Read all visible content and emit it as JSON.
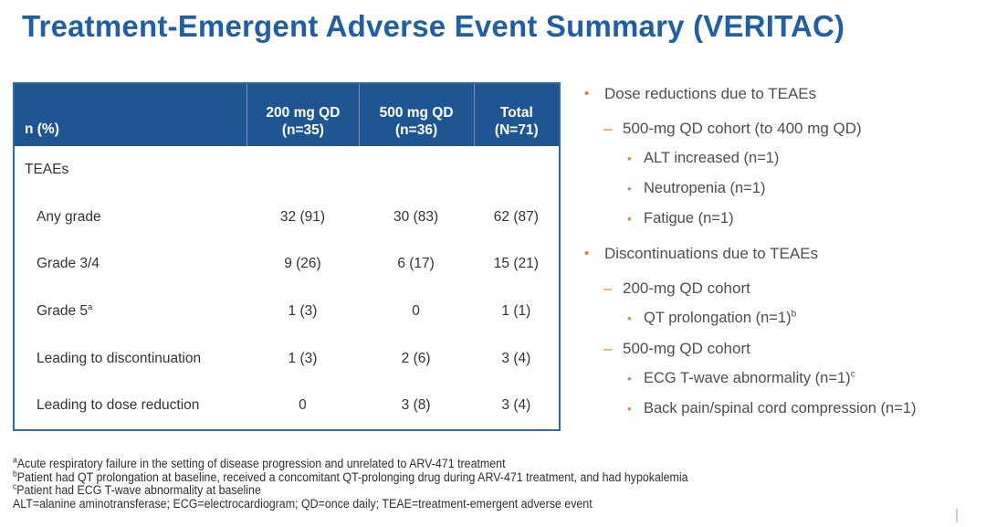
{
  "title": "Treatment-Emergent Adverse Event Summary (VERITAC)",
  "markers": {
    "bullet": "•",
    "dash": "–"
  },
  "table": {
    "corner_label": "n (%)",
    "columns": [
      {
        "line1": "200 mg QD",
        "line2": "(n=35)"
      },
      {
        "line1": "500 mg QD",
        "line2": "(n=36)"
      },
      {
        "line1": "Total",
        "line2": "(N=71)"
      }
    ],
    "rows": [
      {
        "label": "TEAEs",
        "values": [
          "",
          "",
          ""
        ]
      },
      {
        "label": "Any grade",
        "values": [
          "32 (91)",
          "30 (83)",
          "62 (87)"
        ]
      },
      {
        "label": "Grade 3/4",
        "values": [
          "9 (26)",
          "6 (17)",
          "15 (21)"
        ]
      },
      {
        "label": "Grade 5",
        "label_sup": "a",
        "values": [
          "1 (3)",
          "0",
          "1 (1)"
        ]
      },
      {
        "label": "Leading to discontinuation",
        "values": [
          "1 (3)",
          "2 (6)",
          "3 (4)"
        ]
      },
      {
        "label": "Leading to dose reduction",
        "values": [
          "0",
          "3 (8)",
          "3 (4)"
        ]
      }
    ]
  },
  "bullets": [
    {
      "level": 1,
      "text": "Dose reductions due to TEAEs"
    },
    {
      "level": 2,
      "text": "500-mg QD cohort (to 400 mg QD)"
    },
    {
      "level": 3,
      "text": "ALT increased (n=1)"
    },
    {
      "level": 3,
      "text": "Neutropenia (n=1)"
    },
    {
      "level": 3,
      "text": "Fatigue (n=1)"
    },
    {
      "level": 1,
      "text": "Discontinuations due to TEAEs"
    },
    {
      "level": 2,
      "text": "200-mg QD cohort"
    },
    {
      "level": 3,
      "text": "QT prolongation (n=1)",
      "sup": "b"
    },
    {
      "level": 2,
      "text": "500-mg QD cohort"
    },
    {
      "level": 3,
      "text": "ECG T-wave abnormality (n=1)",
      "sup": "c"
    },
    {
      "level": 3,
      "text": "Back pain/spinal cord compression (n=1)"
    }
  ],
  "footnotes": [
    {
      "sup": "a",
      "text": "Acute respiratory failure in the setting of disease progression and unrelated to ARV-471 treatment"
    },
    {
      "sup": "b",
      "text": "Patient had QT prolongation at baseline, received a concomitant QT-prolonging drug during ARV-471 treatment, and had hypokalemia"
    },
    {
      "sup": "c",
      "text": "Patient had ECG T-wave abnormality at baseline"
    },
    {
      "sup": "",
      "text": "ALT=alanine aminotransferase; ECG=electrocardiogram; QD=once daily; TEAE=treatment-emergent adverse event"
    }
  ],
  "colors": {
    "title_blue": "#1F5FA6",
    "header_blue": "#1F5591",
    "border_blue": "#2E6DA4",
    "accent_orange": "#E87E2E",
    "table_text": "#333333",
    "bullet_text": "#4D4E50",
    "footnote_text": "#2E2E2E"
  }
}
